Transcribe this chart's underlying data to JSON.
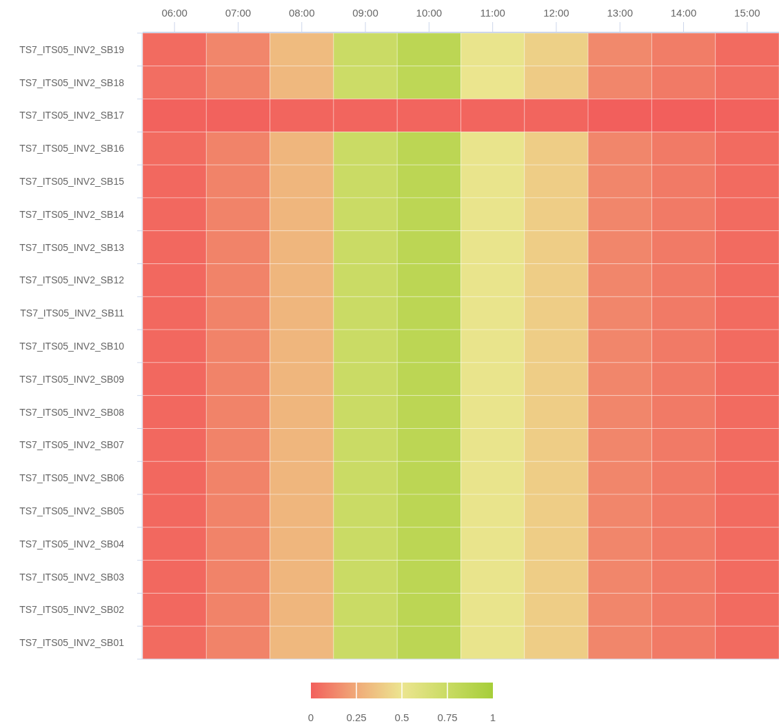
{
  "chart_data": {
    "type": "heatmap",
    "categories": [
      "06:00",
      "07:00",
      "08:00",
      "09:00",
      "10:00",
      "11:00",
      "12:00",
      "13:00",
      "14:00",
      "15:00"
    ],
    "y_categories": [
      "TS7_ITS05_INV2_SB19",
      "TS7_ITS05_INV2_SB18",
      "TS7_ITS05_INV2_SB17",
      "TS7_ITS05_INV2_SB16",
      "TS7_ITS05_INV2_SB15",
      "TS7_ITS05_INV2_SB14",
      "TS7_ITS05_INV2_SB13",
      "TS7_ITS05_INV2_SB12",
      "TS7_ITS05_INV2_SB11",
      "TS7_ITS05_INV2_SB10",
      "TS7_ITS05_INV2_SB09",
      "TS7_ITS05_INV2_SB08",
      "TS7_ITS05_INV2_SB07",
      "TS7_ITS05_INV2_SB06",
      "TS7_ITS05_INV2_SB05",
      "TS7_ITS05_INV2_SB04",
      "TS7_ITS05_INV2_SB03",
      "TS7_ITS05_INV2_SB02",
      "TS7_ITS05_INV2_SB01"
    ],
    "cells": [
      [
        0.04,
        0.13,
        0.32,
        0.74,
        0.84,
        0.52,
        0.41,
        0.14,
        0.1,
        0.04
      ],
      [
        0.05,
        0.12,
        0.31,
        0.73,
        0.83,
        0.51,
        0.39,
        0.13,
        0.09,
        0.05
      ],
      [
        0.01,
        0.01,
        0.02,
        0.02,
        0.02,
        0.02,
        0.02,
        0.0,
        0.0,
        0.01
      ],
      [
        0.04,
        0.12,
        0.3,
        0.74,
        0.84,
        0.52,
        0.4,
        0.13,
        0.09,
        0.04
      ],
      [
        0.03,
        0.12,
        0.3,
        0.74,
        0.84,
        0.52,
        0.4,
        0.13,
        0.09,
        0.04
      ],
      [
        0.03,
        0.12,
        0.3,
        0.74,
        0.84,
        0.52,
        0.4,
        0.13,
        0.09,
        0.04
      ],
      [
        0.03,
        0.12,
        0.3,
        0.74,
        0.84,
        0.52,
        0.4,
        0.13,
        0.09,
        0.04
      ],
      [
        0.03,
        0.12,
        0.3,
        0.74,
        0.84,
        0.52,
        0.4,
        0.13,
        0.09,
        0.04
      ],
      [
        0.03,
        0.12,
        0.3,
        0.74,
        0.84,
        0.52,
        0.4,
        0.13,
        0.09,
        0.04
      ],
      [
        0.03,
        0.12,
        0.3,
        0.74,
        0.84,
        0.52,
        0.4,
        0.13,
        0.09,
        0.04
      ],
      [
        0.03,
        0.12,
        0.3,
        0.74,
        0.84,
        0.52,
        0.4,
        0.13,
        0.09,
        0.04
      ],
      [
        0.03,
        0.12,
        0.3,
        0.74,
        0.84,
        0.52,
        0.4,
        0.13,
        0.09,
        0.04
      ],
      [
        0.03,
        0.12,
        0.3,
        0.74,
        0.84,
        0.52,
        0.4,
        0.13,
        0.09,
        0.04
      ],
      [
        0.03,
        0.12,
        0.3,
        0.74,
        0.84,
        0.52,
        0.4,
        0.13,
        0.09,
        0.04
      ],
      [
        0.03,
        0.12,
        0.3,
        0.74,
        0.84,
        0.52,
        0.4,
        0.13,
        0.09,
        0.04
      ],
      [
        0.03,
        0.12,
        0.3,
        0.74,
        0.84,
        0.52,
        0.4,
        0.13,
        0.09,
        0.04
      ],
      [
        0.03,
        0.12,
        0.3,
        0.74,
        0.84,
        0.52,
        0.4,
        0.13,
        0.09,
        0.04
      ],
      [
        0.03,
        0.12,
        0.3,
        0.74,
        0.84,
        0.52,
        0.4,
        0.13,
        0.09,
        0.04
      ],
      [
        0.04,
        0.12,
        0.31,
        0.74,
        0.84,
        0.52,
        0.4,
        0.13,
        0.09,
        0.04
      ]
    ],
    "colors": [
      "#f25f5c",
      "#f0aa78",
      "#ece590",
      "#c9db63",
      "#a6ce39"
    ],
    "clim": [
      0,
      1
    ],
    "cticks": [
      0,
      0.25,
      0.5,
      0.75,
      1
    ]
  }
}
